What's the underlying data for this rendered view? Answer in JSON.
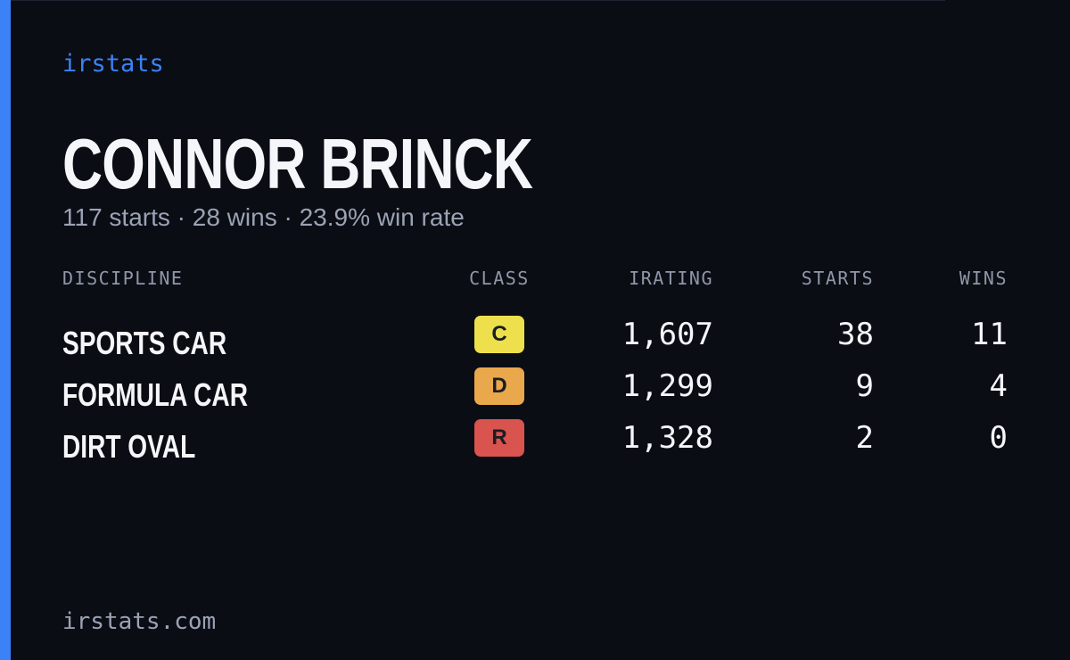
{
  "brand": "irstats",
  "driver": {
    "name": "CONNOR BRINCK",
    "summary": "117 starts · 28 wins · 23.9% win rate"
  },
  "table": {
    "headers": [
      "DISCIPLINE",
      "CLASS",
      "IRATING",
      "STARTS",
      "WINS"
    ],
    "rows": [
      {
        "discipline": "SPORTS CAR",
        "class": "C",
        "class_color": "#ede04c",
        "irating": "1,607",
        "starts": 38,
        "wins": 11
      },
      {
        "discipline": "FORMULA CAR",
        "class": "D",
        "class_color": "#e9a84c",
        "irating": "1,299",
        "starts": 9,
        "wins": 4
      },
      {
        "discipline": "DIRT OVAL",
        "class": "R",
        "class_color": "#d9534f",
        "irating": "1,328",
        "starts": 2,
        "wins": 0
      }
    ]
  },
  "footer": "irstats.com"
}
